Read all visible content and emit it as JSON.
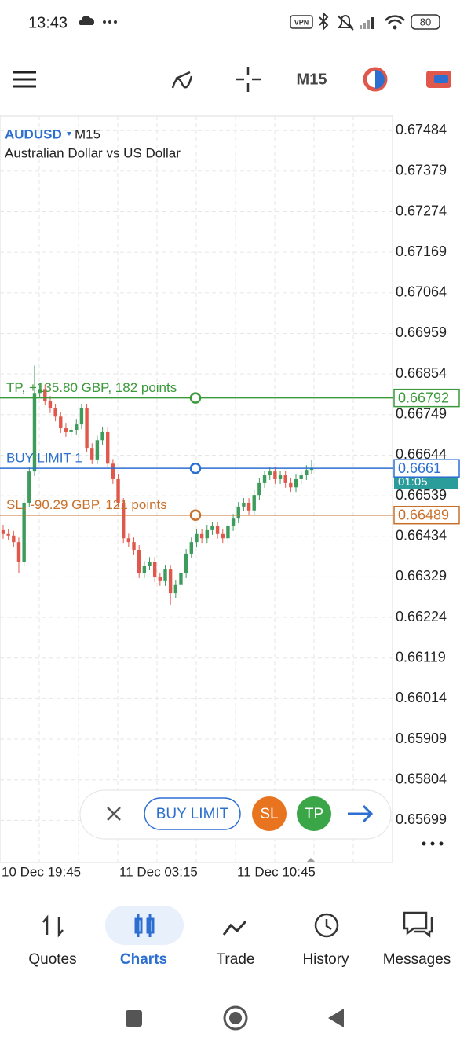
{
  "status_bar": {
    "time": "13:43",
    "battery": "80"
  },
  "toolbar": {
    "timeframe": "M15"
  },
  "chart_data": {
    "type": "candlestick",
    "symbol": "AUDUSD",
    "timeframe": "M15",
    "subtitle": "Australian Dollar vs US Dollar",
    "up_color": "#3d9b5c",
    "down_color": "#e0584b",
    "open": [
      0.6645,
      0.6644,
      0.66436,
      0.66419,
      0.66368,
      0.66521,
      0.66602,
      0.66805,
      0.66815,
      0.66785,
      0.66765,
      0.66744,
      0.66714,
      0.66704,
      0.66708,
      0.66724,
      0.66765,
      0.66663,
      0.66633,
      0.66683,
      0.66704,
      0.66622,
      0.66582,
      0.66521,
      0.66429,
      0.66419,
      0.66399,
      0.66338,
      0.66358,
      0.66368,
      0.66328,
      0.66318,
      0.66348,
      0.66287,
      0.66308,
      0.66338,
      0.66389,
      0.66419,
      0.6644,
      0.66429,
      0.6645,
      0.6646,
      0.6644,
      0.66429,
      0.6646,
      0.6648,
      0.66511,
      0.66521,
      0.66501,
      0.66541,
      0.66572,
      0.66592,
      0.66602,
      0.66582,
      0.66592,
      0.66572,
      0.66561,
      0.66582,
      0.66592,
      0.66606
    ],
    "high": [
      0.66462,
      0.66452,
      0.66448,
      0.66431,
      0.66533,
      0.66614,
      0.66876,
      0.66827,
      0.66827,
      0.66797,
      0.66777,
      0.66756,
      0.66726,
      0.6672,
      0.66736,
      0.66777,
      0.66777,
      0.66675,
      0.66695,
      0.66716,
      0.66716,
      0.66634,
      0.66594,
      0.66533,
      0.66441,
      0.66431,
      0.66411,
      0.6637,
      0.6638,
      0.6638,
      0.6634,
      0.6636,
      0.6636,
      0.6632,
      0.6635,
      0.66401,
      0.66431,
      0.66452,
      0.66452,
      0.66462,
      0.66472,
      0.66472,
      0.66452,
      0.66472,
      0.66492,
      0.66523,
      0.66533,
      0.66533,
      0.66553,
      0.66584,
      0.66604,
      0.66614,
      0.66614,
      0.66604,
      0.66604,
      0.66584,
      0.66594,
      0.66604,
      0.66618,
      0.66632
    ],
    "low": [
      0.66428,
      0.66424,
      0.66407,
      0.66338,
      0.66356,
      0.66509,
      0.6659,
      0.66793,
      0.66773,
      0.66753,
      0.66732,
      0.66702,
      0.66692,
      0.66692,
      0.66696,
      0.66712,
      0.66651,
      0.66621,
      0.66621,
      0.66671,
      0.6661,
      0.6657,
      0.66509,
      0.66417,
      0.66407,
      0.66387,
      0.66326,
      0.66326,
      0.66346,
      0.66316,
      0.66306,
      0.66306,
      0.66257,
      0.66275,
      0.66296,
      0.66326,
      0.66377,
      0.66407,
      0.66417,
      0.66417,
      0.66438,
      0.66428,
      0.66417,
      0.66417,
      0.66448,
      0.66468,
      0.66499,
      0.66489,
      0.66489,
      0.66529,
      0.6656,
      0.6658,
      0.6657,
      0.6657,
      0.6656,
      0.66549,
      0.66549,
      0.6657,
      0.6658,
      0.66594
    ],
    "close": [
      0.6644,
      0.66436,
      0.66419,
      0.66368,
      0.66521,
      0.66602,
      0.66805,
      0.66815,
      0.66785,
      0.66765,
      0.66744,
      0.66714,
      0.66704,
      0.66708,
      0.66724,
      0.66765,
      0.66663,
      0.66633,
      0.66683,
      0.66704,
      0.66622,
      0.66582,
      0.66521,
      0.66429,
      0.66419,
      0.66399,
      0.66338,
      0.66358,
      0.66368,
      0.66328,
      0.66318,
      0.66348,
      0.66287,
      0.66308,
      0.66338,
      0.66389,
      0.66419,
      0.6644,
      0.66429,
      0.6645,
      0.6646,
      0.6644,
      0.66429,
      0.6646,
      0.6648,
      0.66511,
      0.66521,
      0.66501,
      0.66541,
      0.66572,
      0.66592,
      0.66602,
      0.66582,
      0.66592,
      0.66572,
      0.66561,
      0.66582,
      0.66592,
      0.66606,
      0.6661
    ],
    "ylim": [
      0.6559,
      0.67521
    ],
    "yticks": [
      0.67484,
      0.67379,
      0.67274,
      0.67169,
      0.67064,
      0.66959,
      0.66854,
      0.66749,
      0.66644,
      0.66539,
      0.66434,
      0.66329,
      0.66224,
      0.66119,
      0.66014,
      0.65909,
      0.65804,
      0.65699
    ],
    "x_labels": [
      "10 Dec 19:45",
      "11 Dec 03:15",
      "11 Dec 10:45"
    ],
    "grid": true,
    "levels": [
      {
        "name": "TP, +135.80 GBP, 182 points",
        "value": 0.66792,
        "color": "#3a9a3a"
      },
      {
        "name": "BUY LIMIT 1",
        "value": 0.6661,
        "color": "#2d6fd0"
      },
      {
        "name": "SL, -90.29 GBP, 121 points",
        "value": 0.66489,
        "color": "#c8702a"
      }
    ],
    "timer": "01:05"
  },
  "order_panel": {
    "type_button": "BUY LIMIT",
    "sl_button": "SL",
    "tp_button": "TP"
  },
  "nav": [
    "Quotes",
    "Charts",
    "Trade",
    "History",
    "Messages"
  ]
}
